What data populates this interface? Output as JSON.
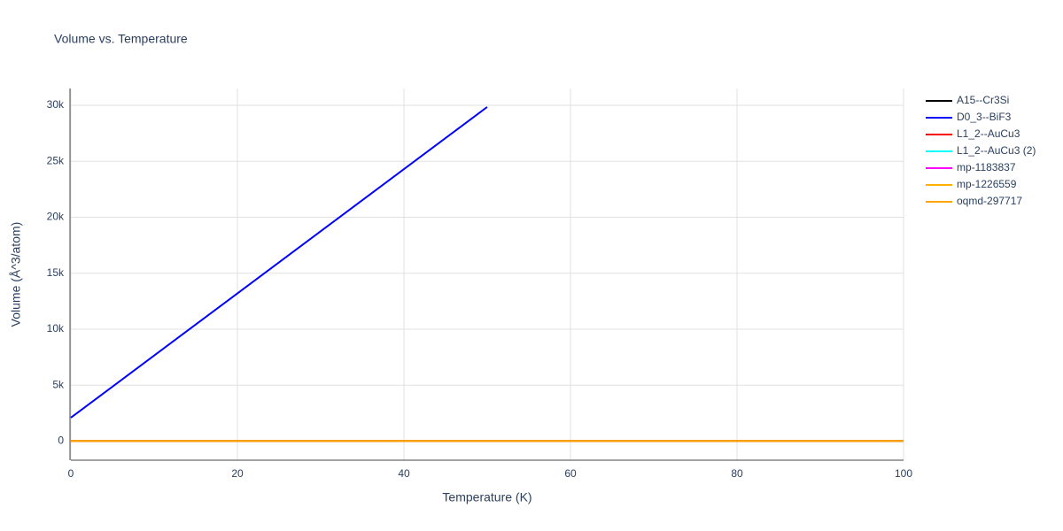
{
  "chart_data": {
    "type": "line",
    "title": "Volume vs. Temperature",
    "x_label": "Temperature (K)",
    "y_label": "Volume (Å^3/atom)",
    "xlim": [
      0,
      100
    ],
    "xticks": [
      0,
      20,
      40,
      60,
      80,
      100
    ],
    "ylim": [
      -1700,
      31500
    ],
    "yticks": [
      0,
      {
        "value": 5000,
        "label": "5k"
      },
      {
        "value": 10000,
        "label": "10k"
      },
      {
        "value": 15000,
        "label": "15k"
      },
      {
        "value": 20000,
        "label": "20k"
      },
      {
        "value": 25000,
        "label": "25k"
      },
      {
        "value": 30000,
        "label": "30k"
      }
    ],
    "grid": true,
    "series": [
      {
        "name": "A15--Cr3Si",
        "color": "#000000",
        "x": [
          0,
          100
        ],
        "values": [
          15,
          15
        ]
      },
      {
        "name": "D0_3--BiF3",
        "color": "#0000ff",
        "x": [
          0,
          50
        ],
        "values": [
          2100,
          29850
        ]
      },
      {
        "name": "L1_2--AuCu3",
        "color": "#ff0000",
        "x": [
          0,
          100
        ],
        "values": [
          15,
          15
        ]
      },
      {
        "name": "L1_2--AuCu3 (2)",
        "color": "#00ffff",
        "x": [
          0,
          100
        ],
        "values": [
          15,
          15
        ]
      },
      {
        "name": "mp-1183837",
        "color": "#ff00ff",
        "x": [
          0,
          100
        ],
        "values": [
          15,
          15
        ]
      },
      {
        "name": "mp-1226559",
        "color": "#ffb000",
        "x": [
          0,
          100
        ],
        "values": [
          15,
          15
        ]
      },
      {
        "name": "oqmd-297717",
        "color": "#ffa500",
        "x": [
          0,
          100
        ],
        "values": [
          15,
          15
        ]
      }
    ]
  }
}
